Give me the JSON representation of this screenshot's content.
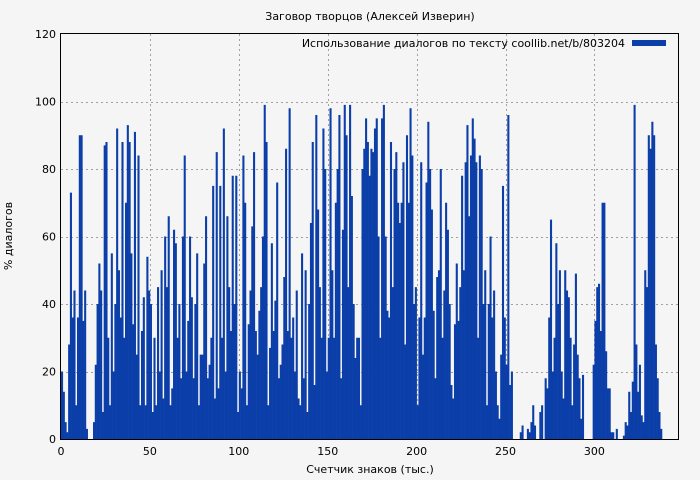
{
  "chart_data": {
    "type": "bar",
    "title": "Заговор творцов (Алексей Изверин)",
    "xlabel": "Счетчик знаков (тыс.)",
    "ylabel": "% диалогов",
    "xlim": [
      0,
      347
    ],
    "ylim": [
      0,
      120
    ],
    "xticks": [
      0,
      50,
      100,
      150,
      200,
      250,
      300
    ],
    "yticks": [
      0,
      20,
      40,
      60,
      80,
      100,
      120
    ],
    "grid": true,
    "legend_position": "top-right",
    "series": [
      {
        "name": "Использование диалогов по тексту coollib.net/b/803204",
        "color": "#0b3ea8",
        "x_step": 1,
        "values": [
          20,
          14,
          5,
          2,
          28,
          73,
          36,
          44,
          10,
          36,
          90,
          90,
          35,
          44,
          3,
          0,
          0,
          0,
          5,
          22,
          40,
          52,
          44,
          8,
          87,
          88,
          30,
          10,
          55,
          20,
          40,
          92,
          50,
          36,
          88,
          30,
          70,
          93,
          88,
          55,
          34,
          91,
          25,
          84,
          10,
          32,
          42,
          10,
          54,
          44,
          40,
          8,
          30,
          10,
          45,
          20,
          50,
          12,
          60,
          45,
          66,
          10,
          15,
          62,
          58,
          30,
          40,
          18,
          60,
          84,
          20,
          35,
          60,
          42,
          18,
          40,
          55,
          10,
          25,
          25,
          52,
          66,
          18,
          22,
          30,
          75,
          12,
          85,
          15,
          75,
          30,
          92,
          20,
          66,
          45,
          32,
          78,
          40,
          78,
          8,
          20,
          15,
          84,
          70,
          10,
          34,
          44,
          63,
          85,
          32,
          25,
          38,
          45,
          60,
          99,
          88,
          10,
          27,
          58,
          32,
          41,
          76,
          18,
          22,
          28,
          48,
          86,
          32,
          98,
          30,
          36,
          20,
          44,
          12,
          10,
          55,
          18,
          50,
          8,
          40,
          64,
          88,
          16,
          96,
          68,
          45,
          30,
          92,
          80,
          20,
          30,
          98,
          50,
          30,
          70,
          80,
          96,
          18,
          62,
          99,
          90,
          45,
          99,
          72,
          40,
          24,
          30,
          30,
          10,
          80,
          86,
          95,
          88,
          78,
          86,
          85,
          92,
          95,
          60,
          30,
          95,
          99,
          60,
          38,
          36,
          88,
          45,
          80,
          85,
          70,
          64,
          70,
          82,
          28,
          90,
          70,
          98,
          84,
          40,
          45,
          10,
          36,
          82,
          25,
          36,
          76,
          94,
          80,
          68,
          38,
          18,
          48,
          50,
          80,
          30,
          44,
          70,
          62,
          40,
          16,
          12,
          34,
          52,
          35,
          45,
          78,
          50,
          82,
          93,
          66,
          84,
          95,
          89,
          82,
          30,
          84,
          80,
          40,
          50,
          10,
          40,
          60,
          36,
          44,
          20,
          10,
          6,
          25,
          75,
          36,
          22,
          96,
          16,
          20,
          0,
          0,
          0,
          0,
          2,
          4,
          0,
          0,
          3,
          2,
          5,
          10,
          4,
          0,
          0,
          8,
          10,
          0,
          18,
          15,
          36,
          65,
          20,
          30,
          58,
          40,
          50,
          20,
          12,
          50,
          44,
          42,
          30,
          10,
          28,
          49,
          25,
          18,
          6,
          19,
          0,
          0,
          0,
          0,
          0,
          22,
          35,
          45,
          46,
          32,
          70,
          70,
          26,
          15,
          15,
          2,
          2,
          0,
          3,
          0,
          0,
          0,
          1,
          5,
          4,
          14,
          8,
          17,
          99,
          28,
          14,
          22,
          7,
          5,
          50,
          45,
          90,
          86,
          94,
          90,
          28,
          18,
          8,
          3
        ]
      }
    ]
  }
}
